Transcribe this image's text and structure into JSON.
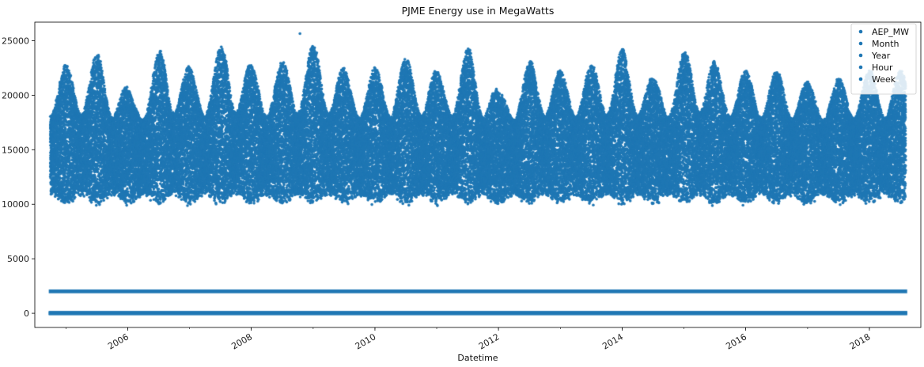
{
  "chart_data": {
    "type": "scatter",
    "title": "PJME Energy use in MegaWatts",
    "xlabel": "Datetime",
    "ylabel": "",
    "xlim": [
      "2004-07-01",
      "2018-11-01"
    ],
    "ylim": [
      -1300,
      26700
    ],
    "yticks": [
      0,
      5000,
      10000,
      15000,
      20000,
      25000
    ],
    "xticks": [
      "2006",
      "2008",
      "2010",
      "2012",
      "2014",
      "2016",
      "2018"
    ],
    "legend": {
      "position": "top-right",
      "entries": [
        "AEP_MW",
        "Month",
        "Year",
        "Hour",
        "Week"
      ]
    },
    "color": "#1f77b4",
    "x_range": [
      "2004-10-01",
      "2018-08-03"
    ],
    "series": [
      {
        "name": "AEP_MW",
        "summer_peaks": [
          {
            "date": "2005-07-20",
            "max": 23900
          },
          {
            "date": "2006-08-01",
            "max": 24800
          },
          {
            "date": "2007-08-08",
            "max": 25100
          },
          {
            "date": "2008-07-18",
            "max": 23200
          },
          {
            "date": "2009-08-10",
            "max": 22000
          },
          {
            "date": "2010-07-20",
            "max": 23500
          },
          {
            "date": "2011-07-21",
            "max": 24500
          },
          {
            "date": "2012-07-17",
            "max": 23300
          },
          {
            "date": "2013-07-18",
            "max": 22900
          },
          {
            "date": "2014-07-10",
            "max": 21400
          },
          {
            "date": "2015-07-28",
            "max": 22800
          },
          {
            "date": "2016-07-25",
            "max": 22300
          },
          {
            "date": "2017-07-20",
            "max": 21600
          },
          {
            "date": "2018-07-02",
            "max": 22300
          }
        ],
        "winter_peaks": [
          {
            "date": "2005-01-20",
            "max": 22800
          },
          {
            "date": "2006-02-05",
            "max": 20000
          },
          {
            "date": "2007-02-05",
            "max": 22100
          },
          {
            "date": "2008-01-20",
            "max": 22500
          },
          {
            "date": "2009-01-16",
            "max": 24800
          },
          {
            "date": "2010-01-15",
            "max": 22600
          },
          {
            "date": "2011-01-24",
            "max": 22100
          },
          {
            "date": "2012-01-10",
            "max": 20200
          },
          {
            "date": "2013-01-23",
            "max": 22200
          },
          {
            "date": "2014-01-07",
            "max": 24300
          },
          {
            "date": "2015-02-20",
            "max": 24700
          },
          {
            "date": "2016-01-20",
            "max": 22200
          },
          {
            "date": "2017-01-08",
            "max": 21200
          },
          {
            "date": "2018-01-05",
            "max": 22400
          }
        ],
        "outlier": {
          "date": "2008-10-15",
          "value": 25650
        },
        "typical_range": [
          9700,
          25200
        ]
      },
      {
        "name": "Month",
        "value_range": [
          1,
          12
        ]
      },
      {
        "name": "Year",
        "value_range": [
          2004,
          2018
        ]
      },
      {
        "name": "Hour",
        "value_range": [
          0,
          23
        ]
      },
      {
        "name": "Week",
        "value_range": [
          1,
          53
        ]
      }
    ]
  }
}
